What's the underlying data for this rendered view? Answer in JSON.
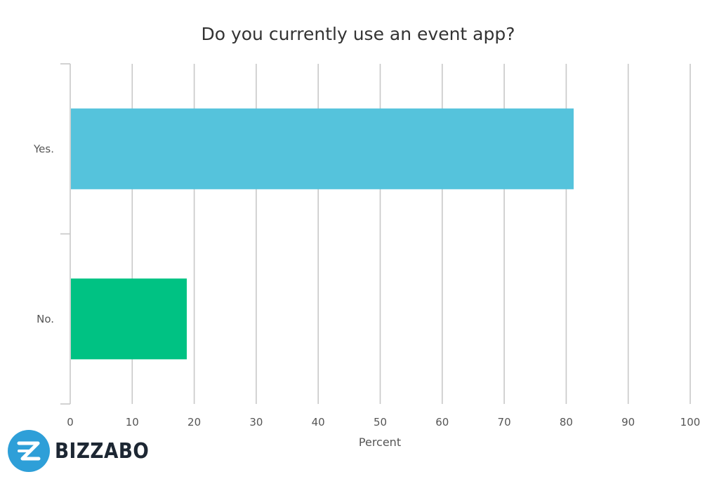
{
  "chart_data": {
    "type": "bar",
    "orientation": "horizontal",
    "title": "Do you currently use an event app?",
    "xlabel": "Percent",
    "ylabel": "",
    "categories": [
      "Yes.",
      "No."
    ],
    "values": [
      81.2,
      18.8
    ],
    "colors": [
      "#55c3dc",
      "#00c283"
    ],
    "xlim": [
      0,
      100
    ],
    "xticks": [
      "0",
      "10",
      "20",
      "30",
      "40",
      "50",
      "60",
      "70",
      "80",
      "90",
      "100"
    ],
    "grid": true,
    "legend": "none"
  },
  "branding": {
    "logo_text": "BIZZABO",
    "logo_mark": "Z",
    "logo_color": "#2e9fd8"
  }
}
